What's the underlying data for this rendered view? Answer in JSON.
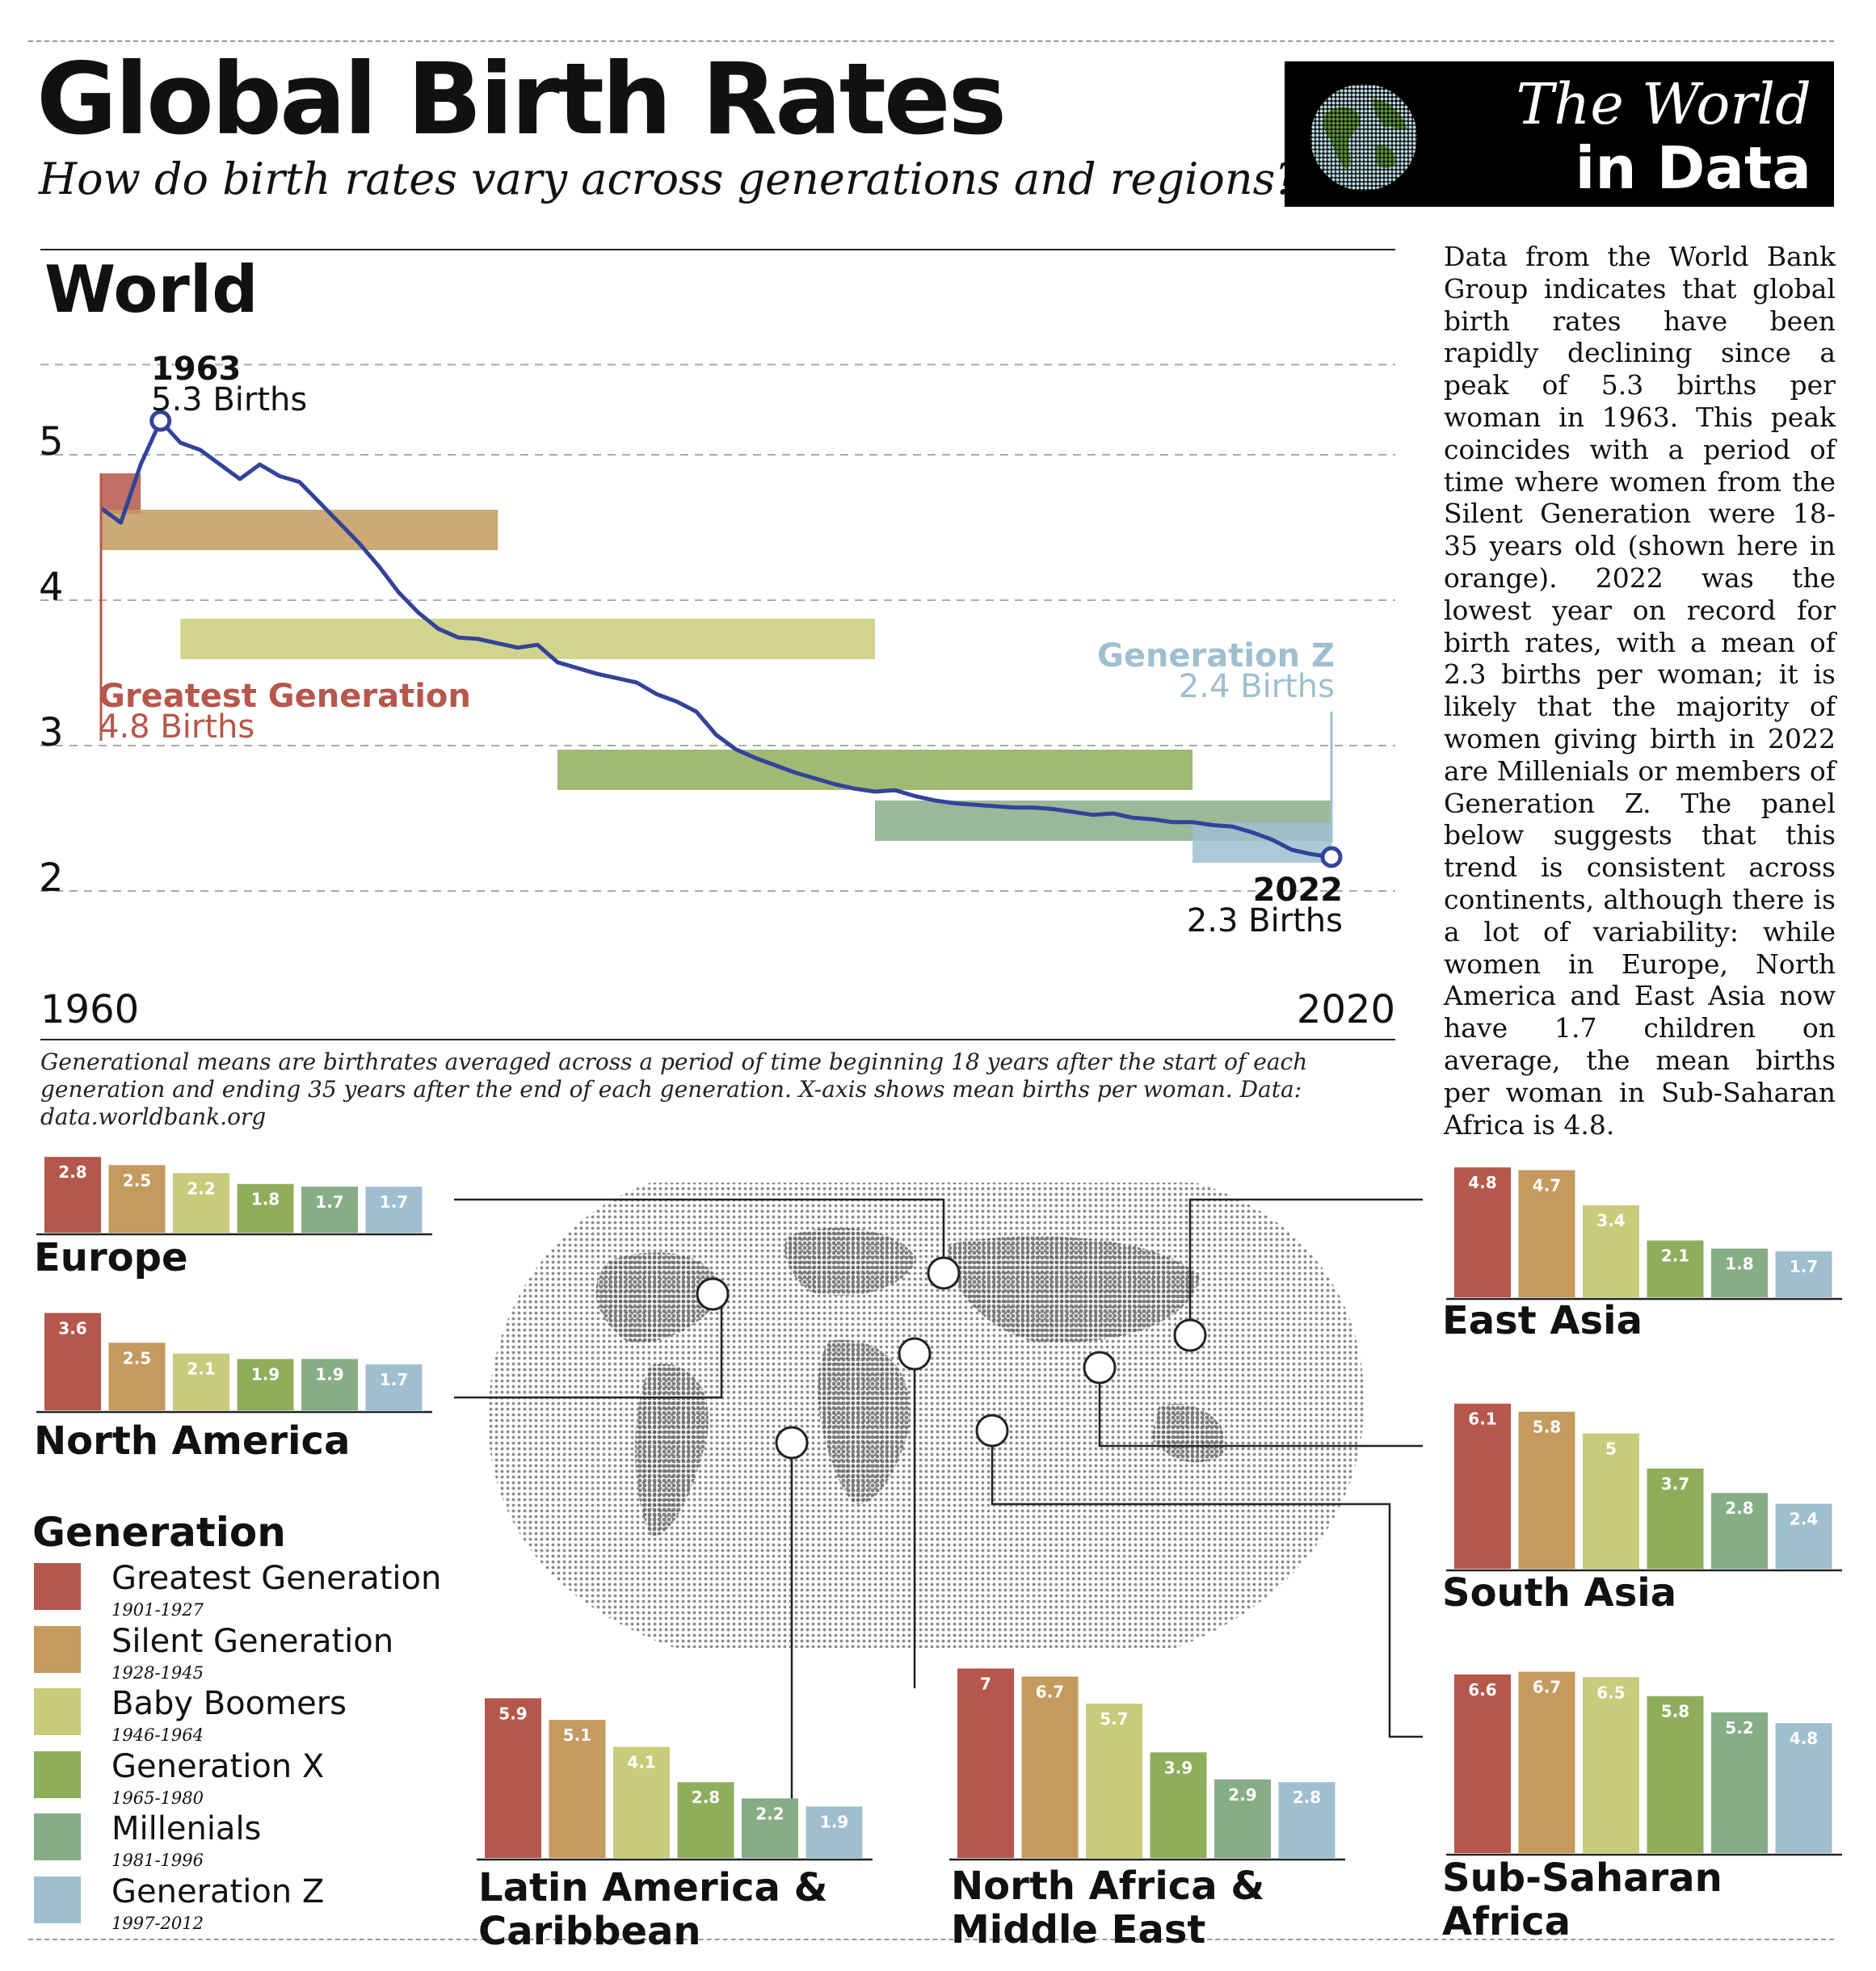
{
  "header": {
    "title": "Global Birth Rates",
    "subtitle": "How do birth rates vary across generations and regions?",
    "brand_line1": "The World",
    "brand_line2": "in Data"
  },
  "world": {
    "heading": "World",
    "description": "Data from the World Bank Group indicates that global birth rates have been rapidly declining since a peak of 5.3 births per woman in 1963. This peak coincides with a period of time where women from the Silent Generation were 18-35 years old (shown here in orange). 2022 was the lowest year on record for birth rates, with a mean of 2.3 births per woman; it is likely that the majority of women giving birth in 2022 are Millenials or members of Generation Z. The panel below suggests that this trend is consistent across continents, although there is a lot of variability: while women in Europe, North America and East Asia now have 1.7 children on average, the mean births per woman in Sub-Saharan Africa is 4.8.",
    "footnote": "Generational means are birthrates averaged across a period of time beginning 18 years after the start of each generation and ending 35 years after the end of each generation. X-axis shows mean births per woman. Data: data.worldbank.org"
  },
  "colors": {
    "Greatest Generation": "#b5574b",
    "Silent Generation": "#c49a5e",
    "Baby Boomers": "#c8cc7a",
    "Generation X": "#8fae5c",
    "Millenials": "#87ad87",
    "Generation Z": "#9fbfd0",
    "line": "#33429a"
  },
  "legend": {
    "title": "Generation",
    "items": [
      {
        "name": "Greatest Generation",
        "years": "1901-1927"
      },
      {
        "name": "Silent Generation",
        "years": "1928-1945"
      },
      {
        "name": "Baby Boomers",
        "years": "1946-1964"
      },
      {
        "name": "Generation X",
        "years": "1965-1980"
      },
      {
        "name": "Millenials",
        "years": "1981-1996"
      },
      {
        "name": "Generation Z",
        "years": "1997-2012"
      }
    ]
  },
  "chart_data": [
    {
      "type": "line",
      "title": "World",
      "xlabel": "",
      "ylabel": "",
      "x_tick_labels": [
        "1960",
        "2020"
      ],
      "y_ticks": [
        2,
        3,
        4,
        5
      ],
      "xlim": [
        1960,
        2025
      ],
      "ylim": [
        1.75,
        5.6
      ],
      "grid": true,
      "series": [
        {
          "x": [
            1960,
            1961,
            1962,
            1963,
            1964,
            1965,
            1966,
            1967,
            1968,
            1969,
            1970,
            1971,
            1972,
            1973,
            1974,
            1975,
            1976,
            1977,
            1978,
            1979,
            1980,
            1981,
            1982,
            1983,
            1984,
            1985,
            1986,
            1987,
            1988,
            1989,
            1990,
            1991,
            1992,
            1993,
            1994,
            1995,
            1996,
            1997,
            1998,
            1999,
            2000,
            2001,
            2002,
            2003,
            2004,
            2005,
            2006,
            2007,
            2008,
            2009,
            2010,
            2011,
            2012,
            2013,
            2014,
            2015,
            2016,
            2017,
            2018,
            2019,
            2020,
            2021,
            2022
          ],
          "values": [
            4.7,
            4.6,
            5.0,
            5.3,
            5.15,
            5.1,
            5.0,
            4.9,
            5.0,
            4.92,
            4.88,
            4.74,
            4.6,
            4.46,
            4.3,
            4.12,
            3.98,
            3.87,
            3.81,
            3.8,
            3.77,
            3.74,
            3.76,
            3.64,
            3.6,
            3.56,
            3.53,
            3.5,
            3.42,
            3.37,
            3.3,
            3.14,
            3.04,
            2.98,
            2.93,
            2.88,
            2.84,
            2.8,
            2.77,
            2.75,
            2.76,
            2.72,
            2.69,
            2.67,
            2.66,
            2.65,
            2.64,
            2.64,
            2.63,
            2.61,
            2.59,
            2.6,
            2.57,
            2.56,
            2.54,
            2.54,
            2.52,
            2.51,
            2.47,
            2.42,
            2.35,
            2.32,
            2.3
          ]
        }
      ],
      "generation_bands": [
        {
          "name": "Greatest Generation",
          "start": 1960,
          "end": 1962,
          "value": 4.8
        },
        {
          "name": "Silent Generation",
          "start": 1960,
          "end": 1980,
          "value": 4.55
        },
        {
          "name": "Baby Boomers",
          "start": 1964,
          "end": 1999,
          "value": 3.8
        },
        {
          "name": "Generation X",
          "start": 1983,
          "end": 2015,
          "value": 2.9
        },
        {
          "name": "Millenials",
          "start": 1999,
          "end": 2022,
          "value": 2.55
        },
        {
          "name": "Generation Z",
          "start": 2015,
          "end": 2022,
          "value": 2.4
        }
      ],
      "annotations": {
        "peak_year": "1963",
        "peak_value": "5.3 Births",
        "low_year": "2022",
        "low_value": "2.3 Births",
        "greatest_name": "Greatest Generation",
        "greatest_value": "4.8 Births",
        "genz_name": "Generation Z",
        "genz_value": "2.4 Births"
      }
    },
    {
      "type": "bar",
      "title": "Europe",
      "categories": [
        "Greatest Generation",
        "Silent Generation",
        "Baby Boomers",
        "Generation X",
        "Millenials",
        "Generation Z"
      ],
      "values": [
        2.8,
        2.5,
        2.2,
        1.8,
        1.7,
        1.7
      ],
      "labels": [
        "2.8",
        "2.5",
        "2.2",
        "1.8",
        "1.7",
        "1.7"
      ]
    },
    {
      "type": "bar",
      "title": "North America",
      "categories": [
        "Greatest Generation",
        "Silent Generation",
        "Baby Boomers",
        "Generation X",
        "Millenials",
        "Generation Z"
      ],
      "values": [
        3.6,
        2.5,
        2.1,
        1.9,
        1.9,
        1.7
      ],
      "labels": [
        "3.6",
        "2.5",
        "2.1",
        "1.9",
        "1.9",
        "1.7"
      ]
    },
    {
      "type": "bar",
      "title": "Latin America & Caribbean",
      "categories": [
        "Greatest Generation",
        "Silent Generation",
        "Baby Boomers",
        "Generation X",
        "Millenials",
        "Generation Z"
      ],
      "values": [
        5.9,
        5.1,
        4.1,
        2.8,
        2.2,
        1.9
      ],
      "labels": [
        "5.9",
        "5.1",
        "4.1",
        "2.8",
        "2.2",
        "1.9"
      ]
    },
    {
      "type": "bar",
      "title": "North Africa & Middle East",
      "categories": [
        "Greatest Generation",
        "Silent Generation",
        "Baby Boomers",
        "Generation X",
        "Millenials",
        "Generation Z"
      ],
      "values": [
        7,
        6.7,
        5.7,
        3.9,
        2.9,
        2.8
      ],
      "labels": [
        "7",
        "6.7",
        "5.7",
        "3.9",
        "2.9",
        "2.8"
      ]
    },
    {
      "type": "bar",
      "title": "East Asia",
      "categories": [
        "Greatest Generation",
        "Silent Generation",
        "Baby Boomers",
        "Generation X",
        "Millenials",
        "Generation Z"
      ],
      "values": [
        4.8,
        4.7,
        3.4,
        2.1,
        1.8,
        1.7
      ],
      "labels": [
        "4.8",
        "4.7",
        "3.4",
        "2.1",
        "1.8",
        "1.7"
      ]
    },
    {
      "type": "bar",
      "title": "South Asia",
      "categories": [
        "Greatest Generation",
        "Silent Generation",
        "Baby Boomers",
        "Generation X",
        "Millenials",
        "Generation Z"
      ],
      "values": [
        6.1,
        5.8,
        5,
        3.7,
        2.8,
        2.4
      ],
      "labels": [
        "6.1",
        "5.8",
        "5",
        "3.7",
        "2.8",
        "2.4"
      ]
    },
    {
      "type": "bar",
      "title": "Sub-Saharan Africa",
      "categories": [
        "Greatest Generation",
        "Silent Generation",
        "Baby Boomers",
        "Generation X",
        "Millenials",
        "Generation Z"
      ],
      "values": [
        6.6,
        6.7,
        6.5,
        5.8,
        5.2,
        4.8
      ],
      "labels": [
        "6.6",
        "6.7",
        "6.5",
        "5.8",
        "5.2",
        "4.8"
      ]
    }
  ],
  "regions": {
    "europe": "Europe",
    "north_america": "North America",
    "latin_america_1": "Latin America &",
    "latin_america_2": "Caribbean",
    "mena_1": "North Africa &",
    "mena_2": "Middle East",
    "east_asia": "East Asia",
    "south_asia": "South Asia",
    "ssa_1": "Sub-Saharan",
    "ssa_2": "Africa"
  }
}
